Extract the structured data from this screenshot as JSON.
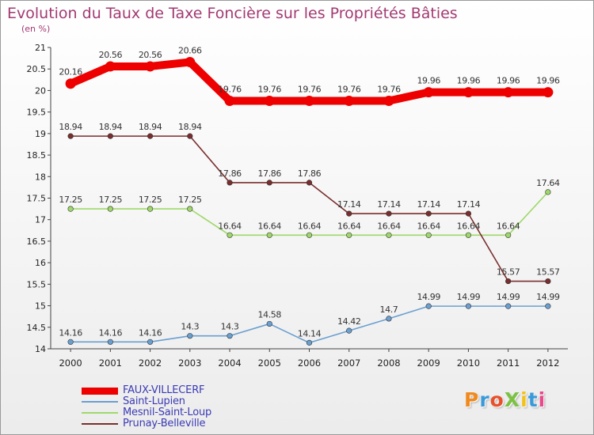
{
  "title": "Evolution du Taux de Taxe Foncière sur les Propriétés Bâties",
  "unit": "(en %)",
  "logo": "ProXiti",
  "chart_data": {
    "type": "line",
    "x": [
      2000,
      2001,
      2002,
      2003,
      2004,
      2005,
      2006,
      2007,
      2008,
      2009,
      2010,
      2011,
      2012
    ],
    "ylim": [
      14,
      21
    ],
    "yticks": [
      "14",
      "14.5",
      "15",
      "15.5",
      "16",
      "16.5",
      "17",
      "17.5",
      "18",
      "18.5",
      "19",
      "19.5",
      "20",
      "20.5",
      "21"
    ],
    "grid": false,
    "legend_position": "bottom-left",
    "series": [
      {
        "name": "FAUX-VILLECERF",
        "color": "#ee0000",
        "values": [
          20.16,
          20.56,
          20.56,
          20.66,
          19.76,
          19.76,
          19.76,
          19.76,
          19.76,
          19.96,
          19.96,
          19.96,
          19.96
        ],
        "labels": [
          "20.16",
          "20.56",
          "20.56",
          "20.66",
          "19.76",
          "19.76",
          "19.76",
          "19.76",
          "19.76",
          "19.96",
          "19.96",
          "19.96",
          "19.96"
        ]
      },
      {
        "name": "Saint-Lupien",
        "color": "#6a9fd0",
        "values": [
          14.16,
          14.16,
          14.16,
          14.3,
          14.3,
          14.58,
          14.14,
          14.42,
          14.7,
          14.99,
          14.99,
          14.99,
          14.99
        ],
        "labels": [
          "14.16",
          "14.16",
          "14.16",
          "14.3",
          "14.3",
          "14.58",
          "14.14",
          "14.42",
          "14.7",
          "14.99",
          "14.99",
          "14.99",
          "14.99"
        ]
      },
      {
        "name": "Mesnil-Saint-Loup",
        "color": "#9fd86a",
        "values": [
          17.25,
          17.25,
          17.25,
          17.25,
          16.64,
          16.64,
          16.64,
          16.64,
          16.64,
          16.64,
          16.64,
          16.64,
          17.64
        ],
        "labels": [
          "17.25",
          "17.25",
          "17.25",
          "17.25",
          "16.64",
          "16.64",
          "16.64",
          "16.64",
          "16.64",
          "16.64",
          "16.64",
          "16.64",
          "17.64"
        ]
      },
      {
        "name": "Prunay-Belleville",
        "color": "#7a2e2e",
        "values": [
          18.94,
          18.94,
          18.94,
          18.94,
          17.86,
          17.86,
          17.86,
          17.14,
          17.14,
          17.14,
          17.14,
          15.57,
          15.57
        ],
        "labels": [
          "18.94",
          "18.94",
          "18.94",
          "18.94",
          "17.86",
          "17.86",
          "17.86",
          "17.14",
          "17.14",
          "17.14",
          "17.14",
          "15.57",
          "15.57"
        ]
      }
    ]
  }
}
